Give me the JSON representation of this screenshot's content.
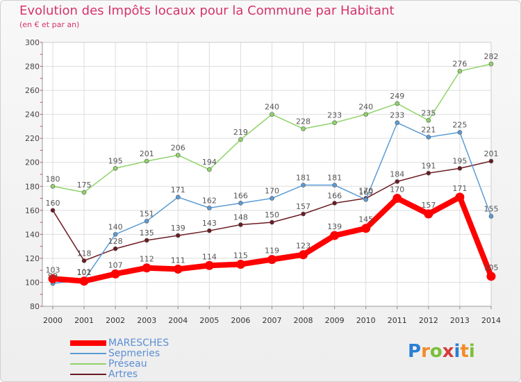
{
  "title": "Evolution des Impôts locaux pour la Commune par Habitant",
  "subtitle": "(en € et par an)",
  "logo": {
    "text": "Proxiti",
    "colors": [
      "#2a7fd4",
      "#f28c28",
      "#7bbf3a",
      "#d63b3b",
      "#2a7fd4",
      "#f28c28",
      "#7bbf3a"
    ]
  },
  "chart_data": {
    "type": "line",
    "title": "Evolution des Impôts locaux pour la Commune par Habitant",
    "subtitle": "(en € et par an)",
    "xlabel": "",
    "ylabel": "",
    "ylim": [
      80,
      300
    ],
    "yticks": [
      80,
      100,
      120,
      140,
      160,
      180,
      200,
      220,
      240,
      260,
      280,
      300
    ],
    "grid": true,
    "x": [
      "2000",
      "2001",
      "2002",
      "2003",
      "2004",
      "2005",
      "2006",
      "2007",
      "2008",
      "2009",
      "2010",
      "2011",
      "2012",
      "2013",
      "2014"
    ],
    "series": [
      {
        "name": "Artres",
        "color": "#6b1a22",
        "values": [
          160,
          118,
          128,
          135,
          139,
          143,
          148,
          150,
          157,
          166,
          170,
          184,
          191,
          195,
          201
        ]
      },
      {
        "name": "Préseau",
        "color": "#8fd36a",
        "values": [
          180,
          175,
          195,
          201,
          206,
          194,
          219,
          240,
          228,
          233,
          240,
          249,
          235,
          276,
          282
        ]
      },
      {
        "name": "Sepmeries",
        "color": "#5b9bd5",
        "values": [
          99,
          102,
          140,
          151,
          171,
          162,
          166,
          170,
          181,
          181,
          169,
          233,
          221,
          225,
          155
        ]
      },
      {
        "name": "MARESCHES",
        "color": "#ff0000",
        "values": [
          103,
          101,
          107,
          112,
          111,
          114,
          115,
          119,
          123,
          139,
          145,
          170,
          157,
          171,
          105
        ]
      }
    ],
    "legend": [
      "MARESCHES",
      "Sepmeries",
      "Préseau",
      "Artres"
    ],
    "legend_position": "bottom-left"
  }
}
